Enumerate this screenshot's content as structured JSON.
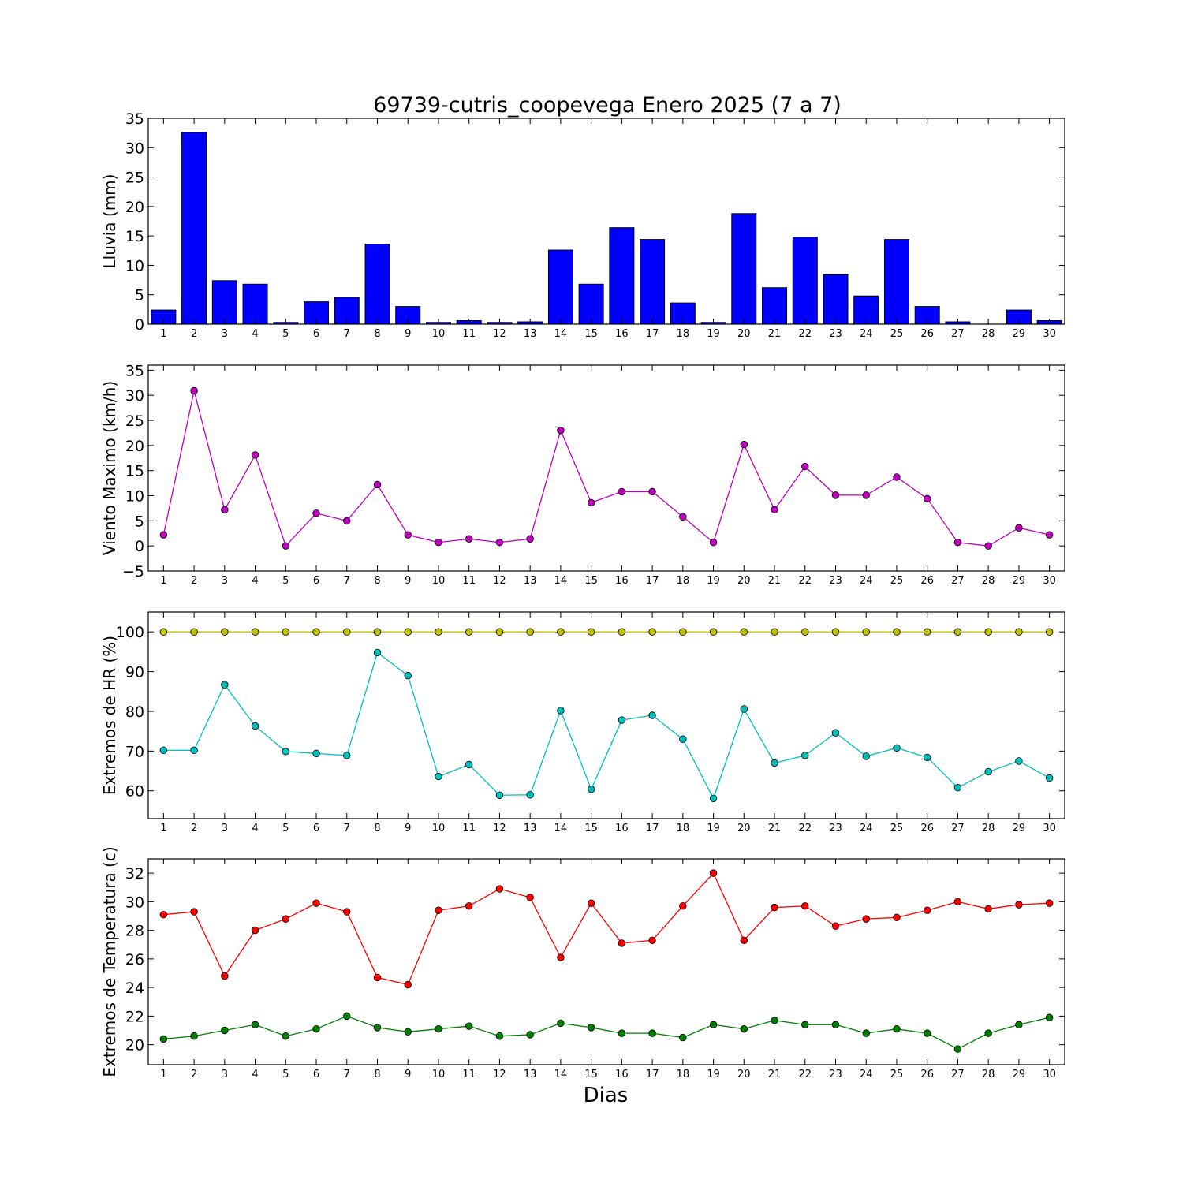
{
  "chart_data": {
    "type": "multi-panel",
    "title": "69739-cutris_coopevega Enero 2025  (7 a 7)",
    "xlabel": "Dias",
    "days": [
      1,
      2,
      3,
      4,
      5,
      6,
      7,
      8,
      9,
      10,
      11,
      12,
      13,
      14,
      15,
      16,
      17,
      18,
      19,
      20,
      21,
      22,
      23,
      24,
      25,
      26,
      27,
      28,
      29,
      30
    ],
    "panels": [
      {
        "type": "bar",
        "ylabel": "Lluvia (mm)",
        "ylim": [
          0,
          35
        ],
        "yticks": [
          0,
          5,
          10,
          15,
          20,
          25,
          30,
          35
        ],
        "series": [
          {
            "color": "#0000ff",
            "values": [
              2.4,
              32.6,
              7.4,
              6.8,
              0.3,
              3.8,
              4.6,
              13.6,
              3.0,
              0.3,
              0.6,
              0.3,
              0.4,
              12.6,
              6.8,
              16.4,
              14.4,
              3.6,
              0.3,
              18.8,
              6.2,
              14.8,
              8.4,
              4.8,
              14.4,
              3.0,
              0.4,
              0.0,
              2.4,
              0.6
            ]
          }
        ]
      },
      {
        "type": "line",
        "ylabel": "Viento Maximo (km/h)",
        "ylim": [
          -5,
          36
        ],
        "yticks": [
          -5,
          0,
          5,
          10,
          15,
          20,
          25,
          30,
          35
        ],
        "series": [
          {
            "color": "#bf00bf",
            "values": [
              2.2,
              30.9,
              7.2,
              18.1,
              0.0,
              6.5,
              5.0,
              12.2,
              2.2,
              0.7,
              1.4,
              0.7,
              1.4,
              23.0,
              8.6,
              10.8,
              10.8,
              5.8,
              0.7,
              20.2,
              7.2,
              15.8,
              10.1,
              10.1,
              13.7,
              9.4,
              0.7,
              0.0,
              3.6,
              2.2
            ]
          }
        ]
      },
      {
        "type": "line",
        "ylabel": "Extremos de HR (%)",
        "ylim": [
          53,
          105
        ],
        "yticks": [
          60,
          70,
          80,
          90,
          100
        ],
        "series": [
          {
            "color": "#bfbf00",
            "values": [
              100,
              100,
              100,
              100,
              100,
              100,
              100,
              100,
              100,
              100,
              100,
              100,
              100,
              100,
              100,
              100,
              100,
              100,
              100,
              100,
              100,
              100,
              100,
              100,
              100,
              100,
              100,
              100,
              100,
              100
            ]
          },
          {
            "color": "#00bfbf",
            "values": [
              70.2,
              70.2,
              86.7,
              76.3,
              69.9,
              69.4,
              68.9,
              94.8,
              89.0,
              63.6,
              66.6,
              58.9,
              59.0,
              80.2,
              60.4,
              77.8,
              79.0,
              73.0,
              58.1,
              80.6,
              67.0,
              68.9,
              74.6,
              68.7,
              70.8,
              68.4,
              60.8,
              64.8,
              67.5,
              63.2
            ]
          }
        ]
      },
      {
        "type": "line",
        "ylabel": "Extremos de Temperatura (c)",
        "ylim": [
          18.6,
          33.0
        ],
        "yticks": [
          20,
          22,
          24,
          26,
          28,
          30,
          32
        ],
        "series": [
          {
            "color": "#ff0000",
            "values": [
              29.1,
              29.3,
              24.8,
              28.0,
              28.8,
              29.9,
              29.3,
              24.7,
              24.2,
              29.4,
              29.7,
              30.9,
              30.3,
              26.1,
              29.9,
              27.1,
              27.3,
              29.7,
              32.0,
              27.3,
              29.6,
              29.7,
              28.3,
              28.8,
              28.9,
              29.4,
              30.0,
              29.5,
              29.8,
              29.9
            ]
          },
          {
            "color": "#008000",
            "values": [
              20.4,
              20.6,
              21.0,
              21.4,
              20.6,
              21.1,
              22.0,
              21.2,
              20.9,
              21.1,
              21.3,
              20.6,
              20.7,
              21.5,
              21.2,
              20.8,
              20.8,
              20.5,
              21.4,
              21.1,
              21.7,
              21.4,
              21.4,
              20.8,
              21.1,
              20.8,
              19.7,
              20.8,
              21.4,
              21.9
            ]
          }
        ]
      }
    ]
  }
}
